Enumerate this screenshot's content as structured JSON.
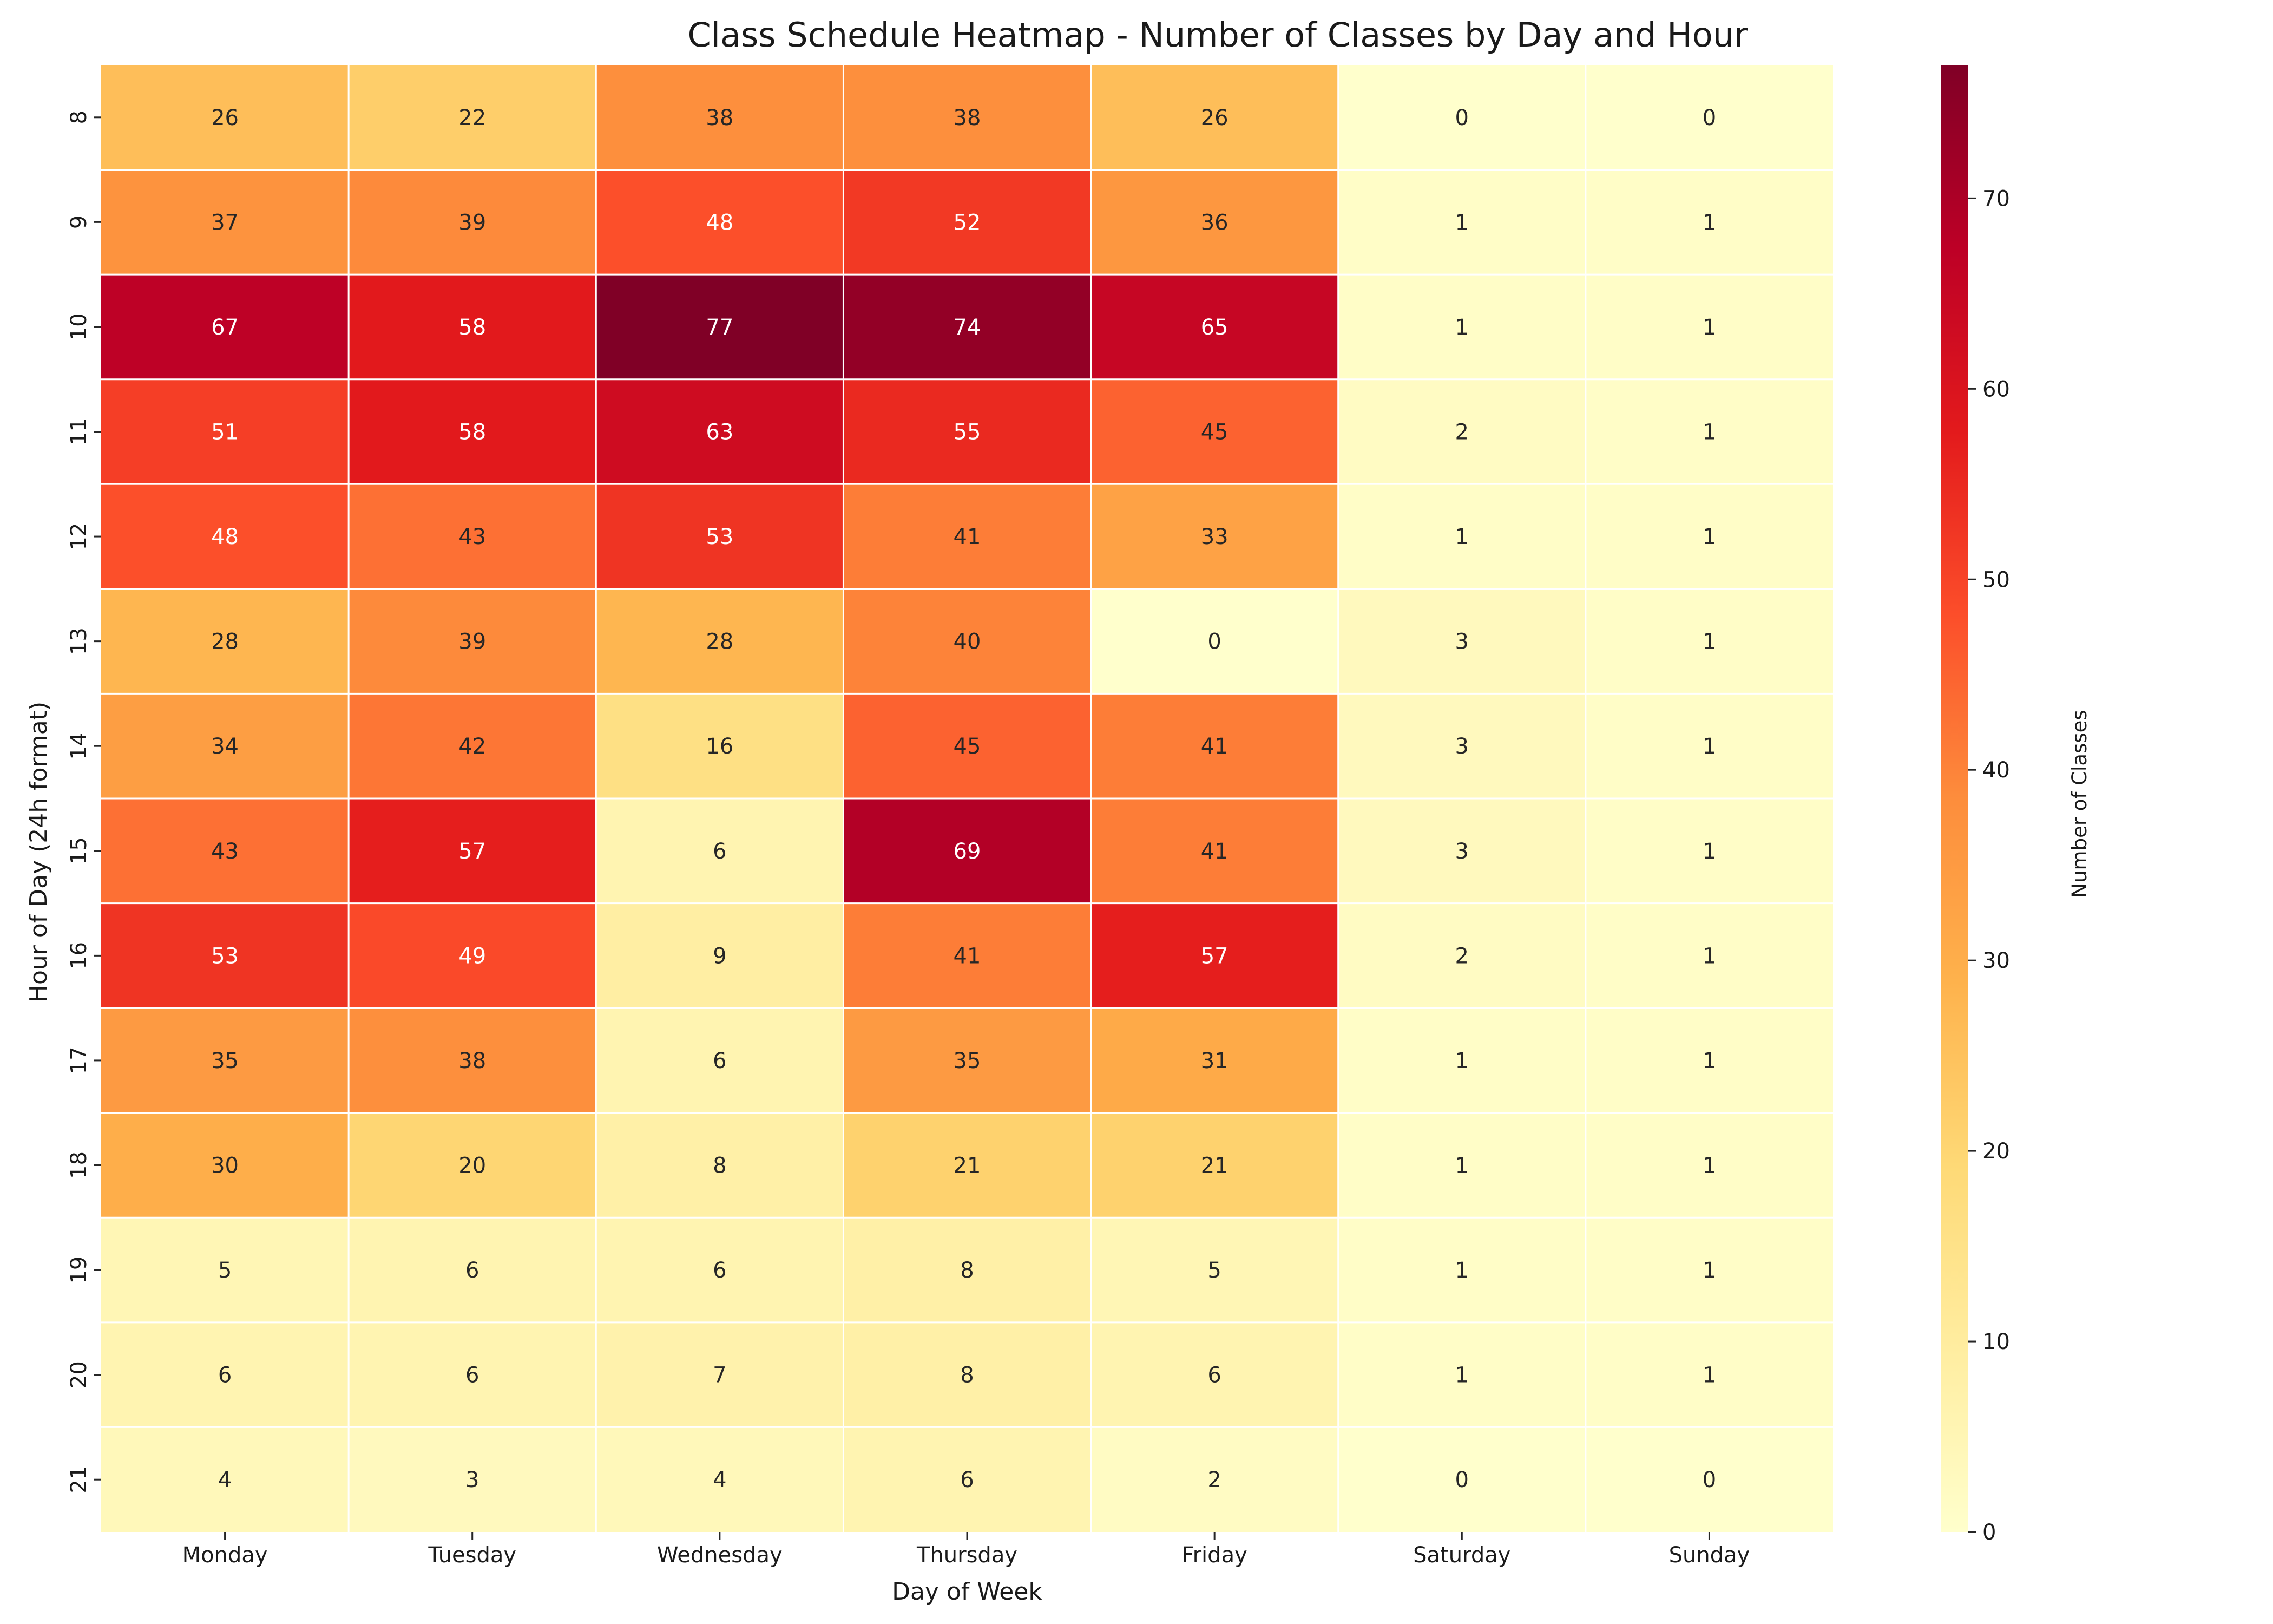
{
  "chart_data": {
    "type": "heatmap",
    "title": "Class Schedule Heatmap - Number of Classes by Day and Hour",
    "xlabel": "Day of Week",
    "ylabel": "Hour of Day (24h format)",
    "x_categories": [
      "Monday",
      "Tuesday",
      "Wednesday",
      "Thursday",
      "Friday",
      "Saturday",
      "Sunday"
    ],
    "y_categories": [
      "8",
      "9",
      "10",
      "11",
      "12",
      "13",
      "14",
      "15",
      "16",
      "17",
      "18",
      "19",
      "20",
      "21"
    ],
    "values": [
      [
        26,
        22,
        38,
        38,
        26,
        0,
        0
      ],
      [
        37,
        39,
        48,
        52,
        36,
        1,
        1
      ],
      [
        67,
        58,
        77,
        74,
        65,
        1,
        1
      ],
      [
        51,
        58,
        63,
        55,
        45,
        2,
        1
      ],
      [
        48,
        43,
        53,
        41,
        33,
        1,
        1
      ],
      [
        28,
        39,
        28,
        40,
        0,
        3,
        1
      ],
      [
        34,
        42,
        16,
        45,
        41,
        3,
        1
      ],
      [
        43,
        57,
        6,
        69,
        41,
        3,
        1
      ],
      [
        53,
        49,
        9,
        41,
        57,
        2,
        1
      ],
      [
        35,
        38,
        6,
        35,
        31,
        1,
        1
      ],
      [
        30,
        20,
        8,
        21,
        21,
        1,
        1
      ],
      [
        5,
        6,
        6,
        8,
        5,
        1,
        1
      ],
      [
        6,
        6,
        7,
        8,
        6,
        1,
        1
      ],
      [
        4,
        3,
        4,
        6,
        2,
        0,
        0
      ]
    ],
    "colormap": "YlOrRd",
    "color_range": [
      0,
      77
    ],
    "colorbar": {
      "label": "Number of Classes",
      "ticks": [
        0,
        10,
        20,
        30,
        40,
        50,
        60,
        70
      ]
    },
    "annotations": true,
    "grid": false
  }
}
